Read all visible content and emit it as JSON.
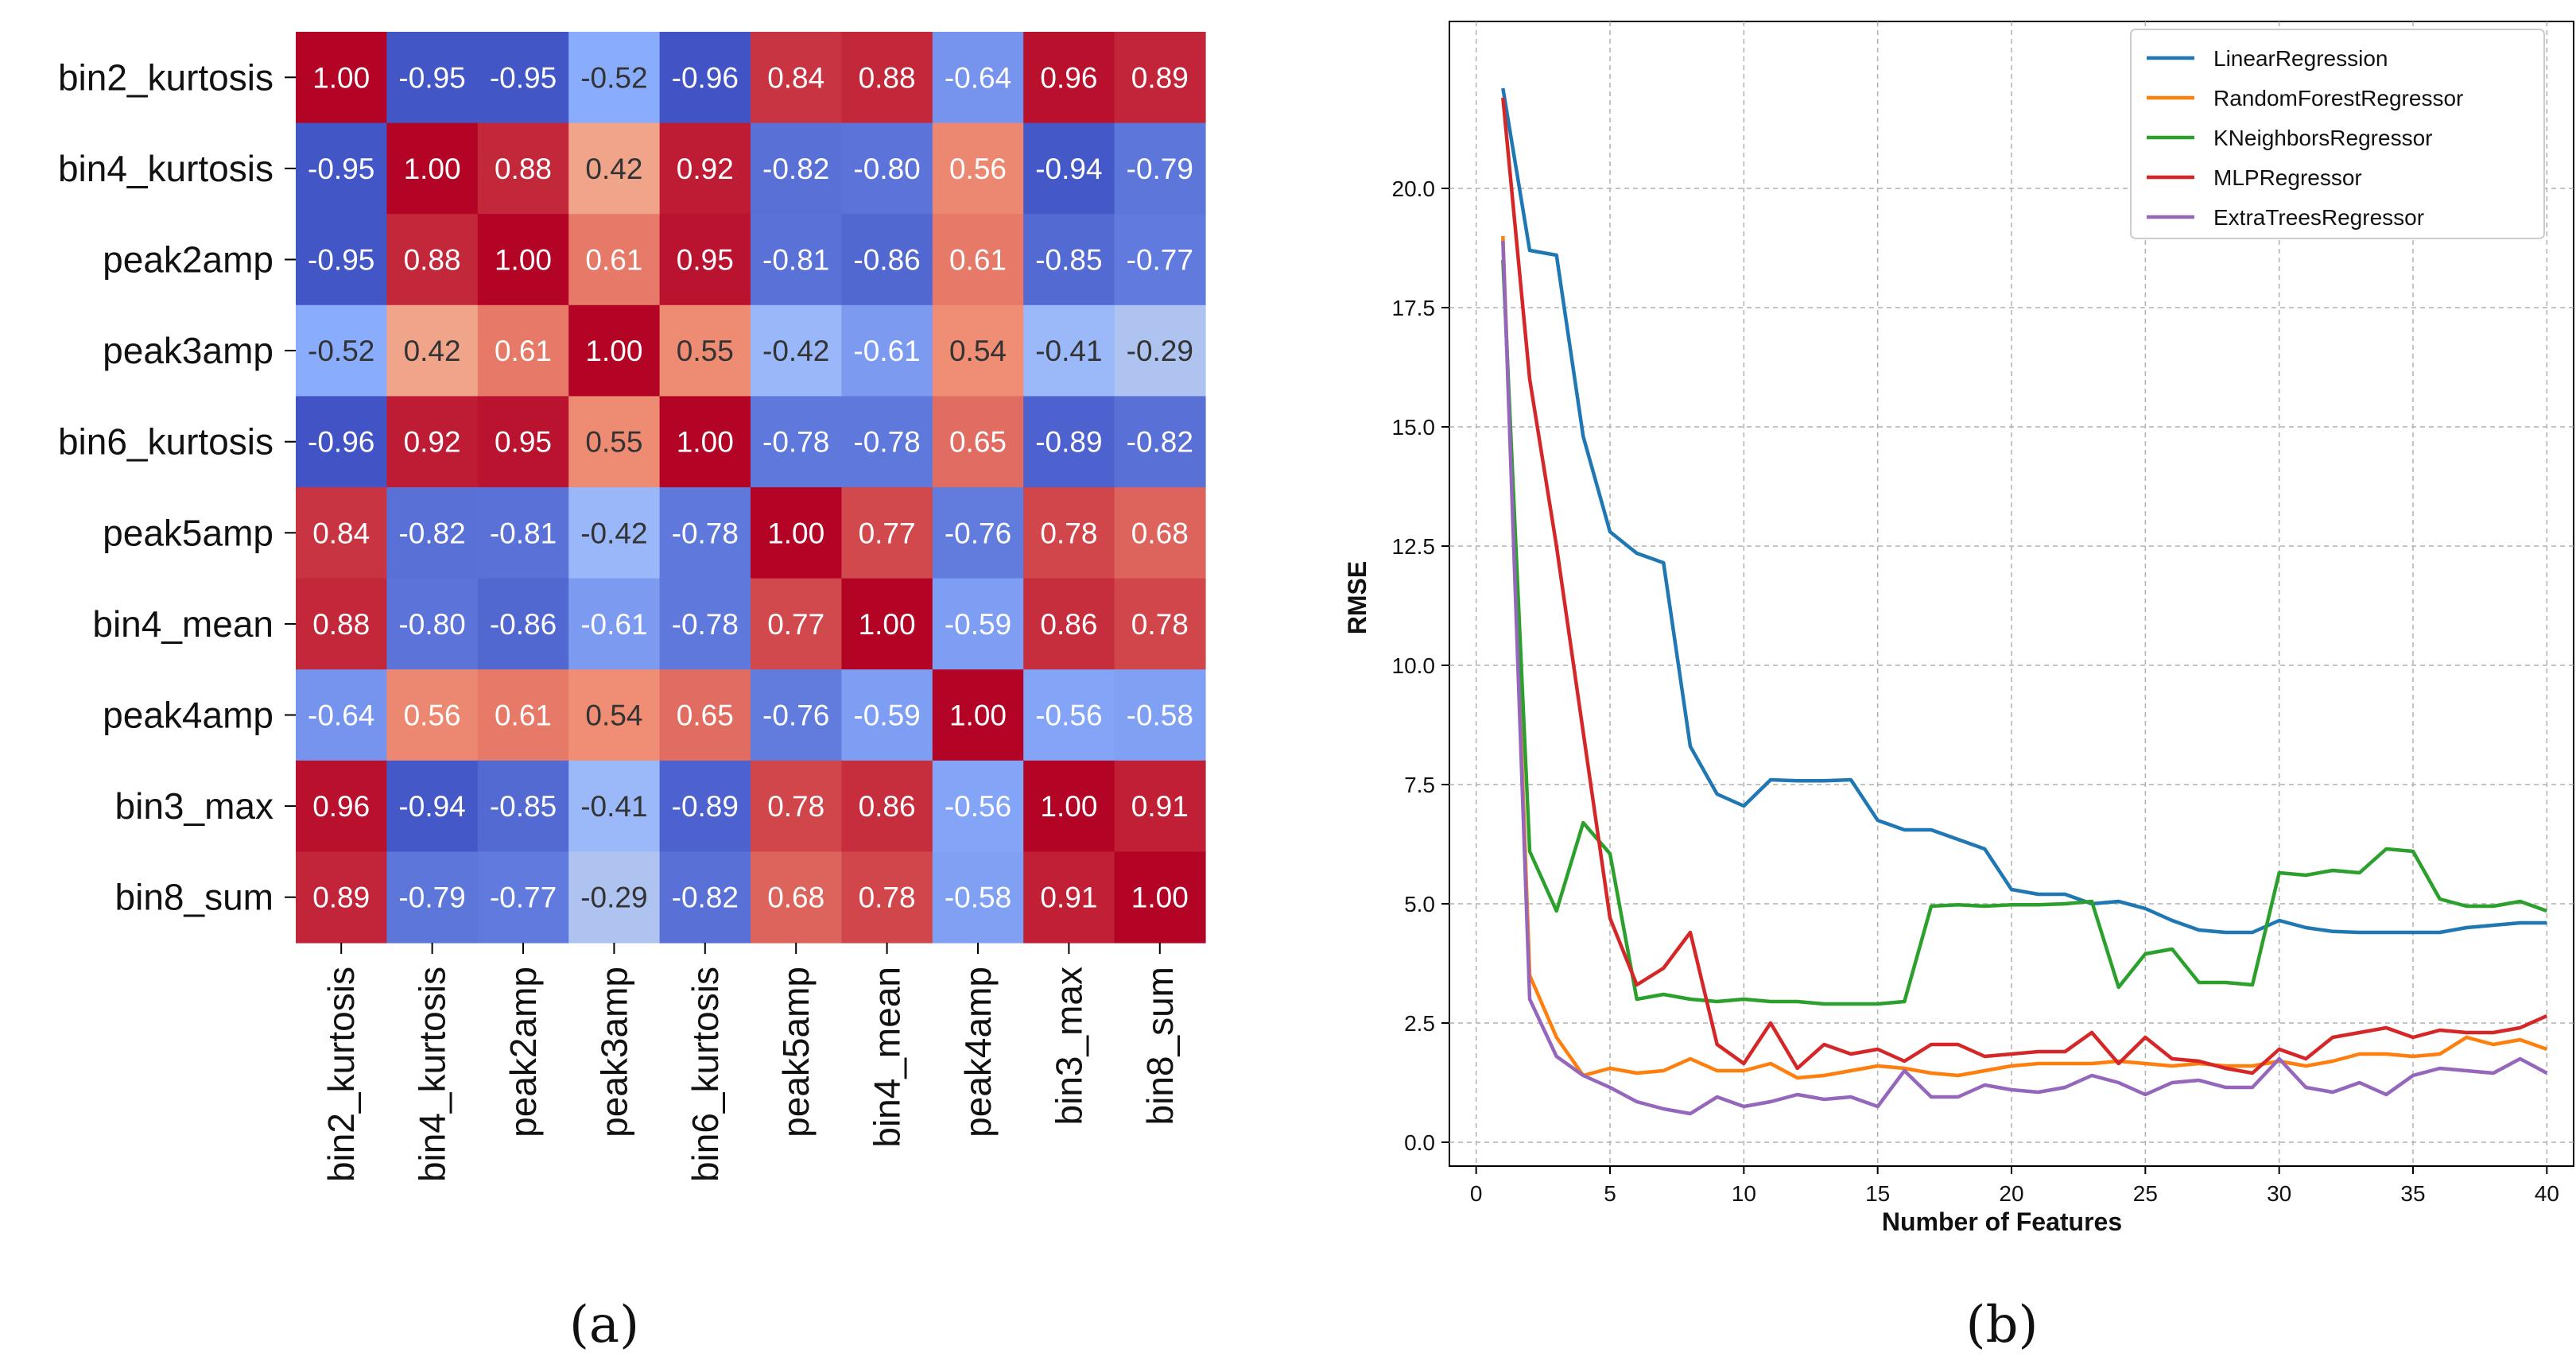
{
  "chart_data": [
    {
      "type": "heatmap",
      "caption": "(a)",
      "rows": [
        "bin2_kurtosis",
        "bin4_kurtosis",
        "peak2amp",
        "peak3amp",
        "bin6_kurtosis",
        "peak5amp",
        "bin4_mean",
        "peak4amp",
        "bin3_max",
        "bin8_sum"
      ],
      "cols": [
        "bin2_kurtosis",
        "bin4_kurtosis",
        "peak2amp",
        "peak3amp",
        "bin6_kurtosis",
        "peak5amp",
        "bin4_mean",
        "peak4amp",
        "bin3_max",
        "bin8_sum"
      ],
      "values": [
        [
          1.0,
          -0.95,
          -0.95,
          -0.52,
          -0.96,
          0.84,
          0.88,
          -0.64,
          0.96,
          0.89
        ],
        [
          -0.95,
          1.0,
          0.88,
          0.42,
          0.92,
          -0.82,
          -0.8,
          0.56,
          -0.94,
          -0.79
        ],
        [
          -0.95,
          0.88,
          1.0,
          0.61,
          0.95,
          -0.81,
          -0.86,
          0.61,
          -0.85,
          -0.77
        ],
        [
          -0.52,
          0.42,
          0.61,
          1.0,
          0.55,
          -0.42,
          -0.61,
          0.54,
          -0.41,
          -0.29
        ],
        [
          -0.96,
          0.92,
          0.95,
          0.55,
          1.0,
          -0.78,
          -0.78,
          0.65,
          -0.89,
          -0.82
        ],
        [
          0.84,
          -0.82,
          -0.81,
          -0.42,
          -0.78,
          1.0,
          0.77,
          -0.76,
          0.78,
          0.68
        ],
        [
          0.88,
          -0.8,
          -0.86,
          -0.61,
          -0.78,
          0.77,
          1.0,
          -0.59,
          0.86,
          0.78
        ],
        [
          -0.64,
          0.56,
          0.61,
          0.54,
          0.65,
          -0.76,
          -0.59,
          1.0,
          -0.56,
          -0.58
        ],
        [
          0.96,
          -0.94,
          -0.85,
          -0.41,
          -0.89,
          0.78,
          0.86,
          -0.56,
          1.0,
          0.91
        ],
        [
          0.89,
          -0.79,
          -0.77,
          -0.29,
          -0.82,
          0.68,
          0.78,
          -0.58,
          0.91,
          1.0
        ]
      ],
      "colormap": "coolwarm",
      "vmin": -1,
      "vmax": 1
    },
    {
      "type": "line",
      "caption": "(b)",
      "xlabel": "Number of Features",
      "ylabel": "RMSE",
      "xlim": [
        -1,
        41
      ],
      "ylim": [
        -0.5,
        23.5
      ],
      "xticks": [
        "0",
        "5",
        "10",
        "15",
        "20",
        "25",
        "30",
        "35",
        "40"
      ],
      "yticks": [
        "0.0",
        "2.5",
        "5.0",
        "7.5",
        "10.0",
        "12.5",
        "15.0",
        "17.5",
        "20.0"
      ],
      "grid": true,
      "legend_position": "top-right",
      "x": [
        1,
        2,
        3,
        4,
        5,
        6,
        7,
        8,
        9,
        10,
        11,
        12,
        13,
        14,
        15,
        16,
        17,
        18,
        19,
        20,
        21,
        22,
        23,
        24,
        25,
        26,
        27,
        28,
        29,
        30,
        31,
        32,
        33,
        35,
        34,
        36,
        37,
        38,
        39,
        40
      ],
      "series": [
        {
          "name": "LinearRegression",
          "color": "#1f77b4",
          "values": [
            22.1,
            18.7,
            18.6,
            14.8,
            12.8,
            12.35,
            12.15,
            8.3,
            7.3,
            7.05,
            7.6,
            7.58,
            7.58,
            7.6,
            6.75,
            6.55,
            6.55,
            6.35,
            6.15,
            5.3,
            5.2,
            5.2,
            5.0,
            5.05,
            4.9,
            4.65,
            4.45,
            4.4,
            4.4,
            4.65,
            4.5,
            4.42,
            4.4,
            4.4,
            4.4,
            4.4,
            4.5,
            4.55,
            4.6,
            4.6
          ]
        },
        {
          "name": "RandomForestRegressor",
          "color": "#ff7f0e",
          "values": [
            19.0,
            3.5,
            2.2,
            1.4,
            1.55,
            1.45,
            1.5,
            1.75,
            1.5,
            1.5,
            1.65,
            1.35,
            1.4,
            1.5,
            1.6,
            1.55,
            1.45,
            1.4,
            1.5,
            1.6,
            1.65,
            1.65,
            1.65,
            1.7,
            1.65,
            1.6,
            1.65,
            1.6,
            1.6,
            1.7,
            1.6,
            1.7,
            1.85,
            1.85,
            1.8,
            1.85,
            2.2,
            2.05,
            2.15,
            1.95
          ]
        },
        {
          "name": "KNeighborsRegressor",
          "color": "#2ca02c",
          "values": [
            18.5,
            6.1,
            4.85,
            6.7,
            6.05,
            3.0,
            3.1,
            3.0,
            2.95,
            3.0,
            2.95,
            2.95,
            2.9,
            2.9,
            2.9,
            2.95,
            4.95,
            4.98,
            4.95,
            4.98,
            4.98,
            5.0,
            5.05,
            3.25,
            3.95,
            4.05,
            3.35,
            3.35,
            3.3,
            5.65,
            5.6,
            5.7,
            5.65,
            6.15,
            6.1,
            5.1,
            4.95,
            4.95,
            5.05,
            4.85
          ]
        },
        {
          "name": "MLPRegressor",
          "color": "#d62728",
          "values": [
            21.9,
            16.0,
            12.5,
            8.6,
            4.7,
            3.3,
            3.65,
            4.4,
            2.05,
            1.65,
            2.5,
            1.55,
            2.05,
            1.85,
            1.95,
            1.7,
            2.05,
            2.05,
            1.8,
            1.85,
            1.9,
            1.9,
            2.3,
            1.65,
            2.2,
            1.75,
            1.7,
            1.55,
            1.45,
            1.95,
            1.75,
            2.2,
            2.3,
            2.4,
            2.2,
            2.35,
            2.3,
            2.3,
            2.4,
            2.65
          ]
        },
        {
          "name": "ExtraTreesRegressor",
          "color": "#9467bd",
          "values": [
            18.9,
            3.0,
            1.8,
            1.4,
            1.15,
            0.85,
            0.7,
            0.6,
            0.95,
            0.75,
            0.85,
            1.0,
            0.9,
            0.95,
            0.75,
            1.5,
            0.95,
            0.95,
            1.2,
            1.1,
            1.05,
            1.15,
            1.4,
            1.25,
            1.0,
            1.25,
            1.3,
            1.15,
            1.15,
            1.75,
            1.15,
            1.05,
            1.25,
            1.0,
            1.4,
            1.55,
            1.5,
            1.45,
            1.75,
            1.45
          ]
        }
      ]
    }
  ]
}
